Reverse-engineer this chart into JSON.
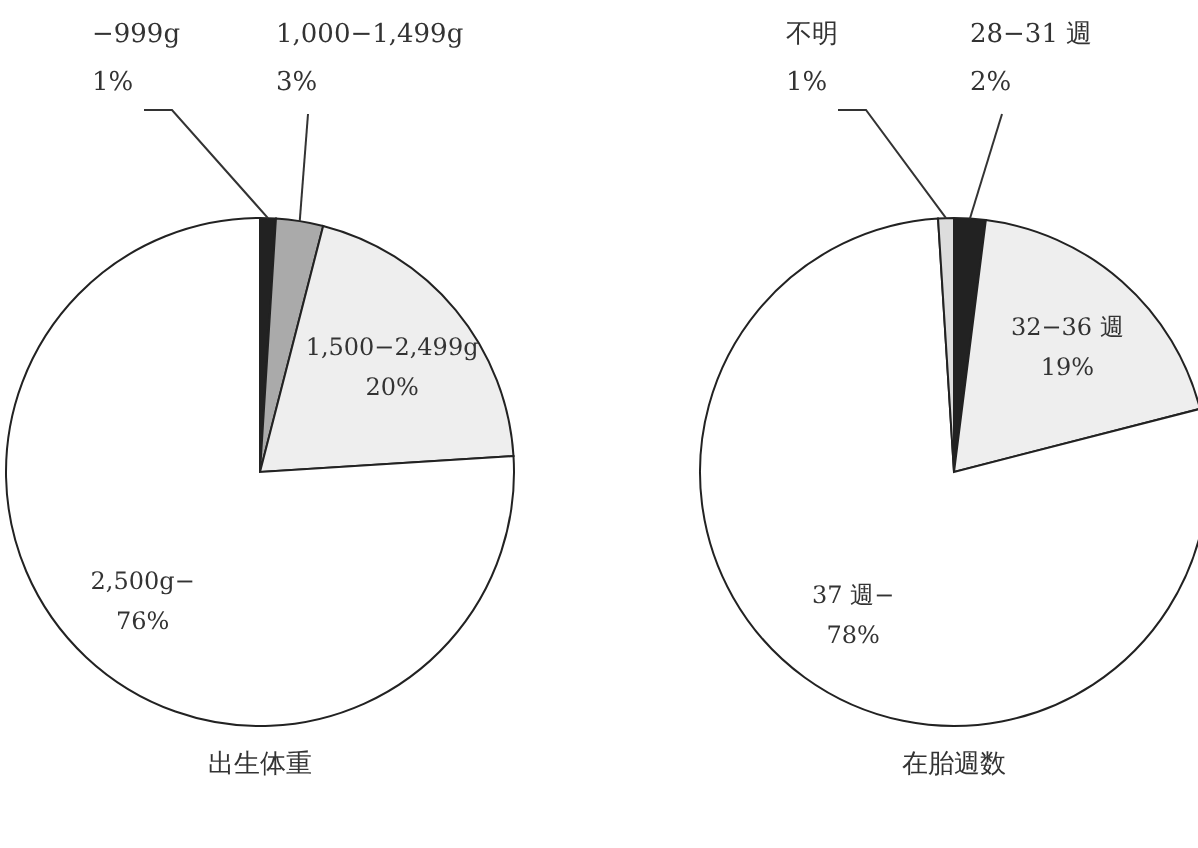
{
  "chart_data": [
    {
      "type": "pie",
      "title": "出生体重",
      "categories": [
        "−999g",
        "1,000−1,499g",
        "1,500−2,499g",
        "2,500g−"
      ],
      "values": [
        1,
        3,
        20,
        76
      ],
      "value_labels": [
        "1%",
        "3%",
        "20%",
        "76%"
      ],
      "colors": [
        "#222222",
        "#aaaaaa",
        "#eeeeee",
        "#ffffff"
      ]
    },
    {
      "type": "pie",
      "title": "在胎週数",
      "categories": [
        "28−31 週",
        "32−36 週",
        "37 週−",
        "不明"
      ],
      "values": [
        2,
        19,
        78,
        1
      ],
      "value_labels": [
        "2%",
        "19%",
        "78%",
        "1%"
      ],
      "colors": [
        "#222222",
        "#eeeeee",
        "#ffffff",
        "#dddddd"
      ]
    }
  ]
}
